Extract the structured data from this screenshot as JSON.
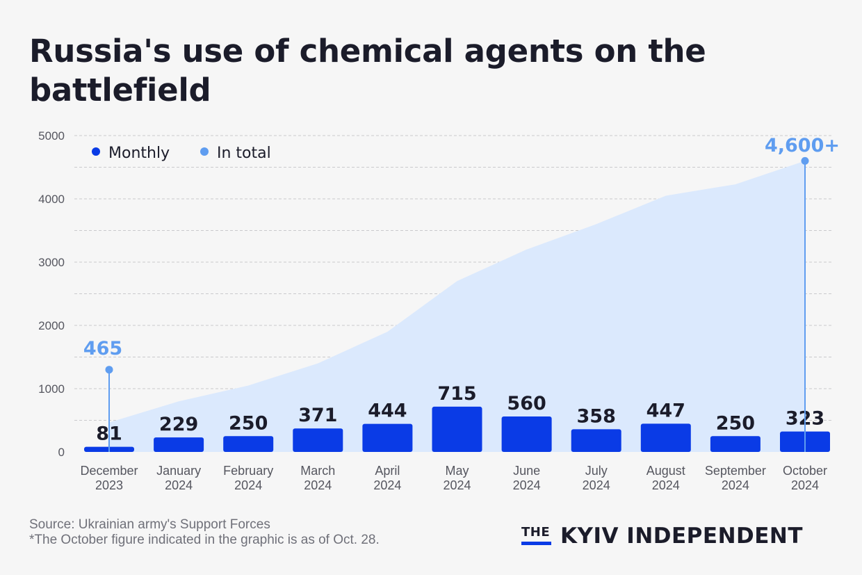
{
  "title": "Russia's use of chemical agents on the battlefield",
  "footer": {
    "source": "Source: Ukrainian army's Support Forces",
    "note": "*The October figure indicated in the graphic is as of Oct. 28."
  },
  "logo": {
    "the": "THE",
    "name": "KYIV INDEPENDENT"
  },
  "colors": {
    "monthly": "#0a3be6",
    "total_area": "#dbe9fd",
    "total_accent": "#5f9df0",
    "text": "#1b1c2a",
    "axis_text": "#55565f"
  },
  "chart_data": {
    "type": "bar",
    "title": "Russia's use of chemical agents on the battlefield",
    "categories": [
      [
        "December",
        "2023"
      ],
      [
        "January",
        "2024"
      ],
      [
        "February",
        "2024"
      ],
      [
        "March",
        "2024"
      ],
      [
        "April",
        "2024"
      ],
      [
        "May",
        "2024"
      ],
      [
        "June",
        "2024"
      ],
      [
        "July",
        "2024"
      ],
      [
        "August",
        "2024"
      ],
      [
        "September",
        "2024"
      ],
      [
        "October",
        "2024"
      ]
    ],
    "series": [
      {
        "name": "Monthly",
        "type": "bar",
        "values": [
          81,
          229,
          250,
          371,
          444,
          715,
          560,
          358,
          447,
          250,
          323
        ]
      },
      {
        "name": "In total",
        "type": "area",
        "values": [
          465,
          800,
          1050,
          1400,
          1900,
          2700,
          3200,
          3600,
          4050,
          4230,
          4600
        ]
      }
    ],
    "annotations": [
      {
        "series": "In total",
        "index": 0,
        "label": "465"
      },
      {
        "series": "In total",
        "index": 10,
        "label": "4,600+"
      }
    ],
    "legend": {
      "position": "top-left",
      "entries": [
        "Monthly",
        "In total"
      ]
    },
    "yticks": [
      0,
      1000,
      2000,
      3000,
      4000,
      5000
    ],
    "ylim": [
      0,
      5000
    ],
    "grid": true,
    "xlabel": "",
    "ylabel": ""
  }
}
